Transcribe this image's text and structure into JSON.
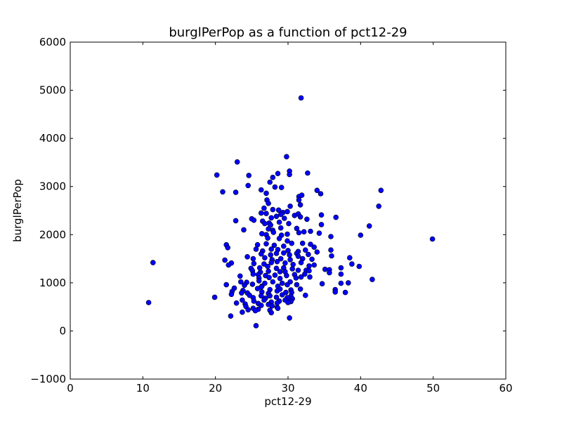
{
  "chart_data": {
    "type": "scatter",
    "title": "burglPerPop as a function of pct12-29",
    "xlabel": "pct12-29",
    "ylabel": "burglPerPop",
    "xlim": [
      0,
      60
    ],
    "ylim": [
      -1000,
      6000
    ],
    "xticks": [
      0,
      10,
      20,
      30,
      40,
      50,
      60
    ],
    "yticks": [
      -1000,
      0,
      1000,
      2000,
      3000,
      4000,
      5000,
      6000
    ],
    "xtick_labels": [
      "0",
      "10",
      "20",
      "30",
      "40",
      "50",
      "60"
    ],
    "ytick_labels": [
      "−1000",
      "0",
      "1000",
      "2000",
      "3000",
      "4000",
      "5000",
      "6000"
    ],
    "grid": false,
    "legend": "none",
    "marker_color": "#0000ff",
    "marker_edge_color": "#000000",
    "points": [
      [
        31.8,
        4840
      ],
      [
        29.8,
        3620
      ],
      [
        23.0,
        3510
      ],
      [
        32.7,
        3280
      ],
      [
        30.2,
        3320
      ],
      [
        20.2,
        3240
      ],
      [
        24.6,
        3230
      ],
      [
        30.2,
        3250
      ],
      [
        28.6,
        3270
      ],
      [
        27.9,
        3190
      ],
      [
        24.5,
        3020
      ],
      [
        27.5,
        3090
      ],
      [
        28.2,
        2990
      ],
      [
        29.1,
        2980
      ],
      [
        21.0,
        2890
      ],
      [
        22.8,
        2880
      ],
      [
        26.3,
        2930
      ],
      [
        27.0,
        2860
      ],
      [
        34.5,
        2850
      ],
      [
        34.0,
        2920
      ],
      [
        42.8,
        2920
      ],
      [
        31.5,
        2790
      ],
      [
        31.9,
        2820
      ],
      [
        27.1,
        2720
      ],
      [
        31.5,
        2720
      ],
      [
        31.7,
        2620
      ],
      [
        27.3,
        2650
      ],
      [
        30.3,
        2590
      ],
      [
        42.5,
        2590
      ],
      [
        26.7,
        2550
      ],
      [
        27.9,
        2520
      ],
      [
        28.7,
        2510
      ],
      [
        29.3,
        2460
      ],
      [
        29.9,
        2480
      ],
      [
        26.3,
        2450
      ],
      [
        27.0,
        2440
      ],
      [
        29.0,
        2420
      ],
      [
        30.9,
        2400
      ],
      [
        31.4,
        2430
      ],
      [
        34.6,
        2410
      ],
      [
        25.0,
        2330
      ],
      [
        25.3,
        2300
      ],
      [
        27.7,
        2350
      ],
      [
        28.4,
        2380
      ],
      [
        29.5,
        2340
      ],
      [
        31.7,
        2370
      ],
      [
        32.6,
        2320
      ],
      [
        36.6,
        2360
      ],
      [
        22.8,
        2290
      ],
      [
        26.5,
        2280
      ],
      [
        27.4,
        2240
      ],
      [
        26.8,
        2230
      ],
      [
        27.6,
        2200
      ],
      [
        28.8,
        2260
      ],
      [
        30.1,
        2230
      ],
      [
        34.6,
        2210
      ],
      [
        41.2,
        2180
      ],
      [
        23.9,
        2100
      ],
      [
        27.3,
        2120
      ],
      [
        27.9,
        2090
      ],
      [
        29.0,
        2140
      ],
      [
        31.2,
        2130
      ],
      [
        26.4,
        2020
      ],
      [
        27.0,
        2000
      ],
      [
        28.0,
        2050
      ],
      [
        29.1,
        1990
      ],
      [
        29.9,
        2010
      ],
      [
        31.5,
        2040
      ],
      [
        32.2,
        2060
      ],
      [
        33.1,
        2070
      ],
      [
        34.3,
        2030
      ],
      [
        35.9,
        1960
      ],
      [
        40.0,
        1990
      ],
      [
        49.9,
        1910
      ],
      [
        27.2,
        1930
      ],
      [
        28.8,
        1920
      ],
      [
        29.9,
        1870
      ],
      [
        21.5,
        1790
      ],
      [
        25.8,
        1790
      ],
      [
        27.0,
        1810
      ],
      [
        28.1,
        1780
      ],
      [
        29.4,
        1760
      ],
      [
        30.5,
        1820
      ],
      [
        32.0,
        1820
      ],
      [
        33.1,
        1800
      ],
      [
        21.7,
        1730
      ],
      [
        25.6,
        1700
      ],
      [
        26.5,
        1660
      ],
      [
        27.7,
        1700
      ],
      [
        28.6,
        1690
      ],
      [
        30.0,
        1670
      ],
      [
        31.4,
        1650
      ],
      [
        32.4,
        1680
      ],
      [
        33.6,
        1740
      ],
      [
        35.9,
        1680
      ],
      [
        26.3,
        1600
      ],
      [
        27.6,
        1580
      ],
      [
        28.4,
        1610
      ],
      [
        29.4,
        1620
      ],
      [
        30.2,
        1580
      ],
      [
        31.2,
        1610
      ],
      [
        32.8,
        1590
      ],
      [
        34.0,
        1640
      ],
      [
        36.0,
        1560
      ],
      [
        24.4,
        1540
      ],
      [
        25.2,
        1500
      ],
      [
        26.8,
        1520
      ],
      [
        27.8,
        1480
      ],
      [
        29.0,
        1500
      ],
      [
        30.3,
        1480
      ],
      [
        31.4,
        1550
      ],
      [
        32.0,
        1500
      ],
      [
        33.3,
        1490
      ],
      [
        38.5,
        1520
      ],
      [
        11.4,
        1420
      ],
      [
        21.3,
        1470
      ],
      [
        22.2,
        1410
      ],
      [
        21.8,
        1370
      ],
      [
        25.3,
        1400
      ],
      [
        26.7,
        1390
      ],
      [
        27.7,
        1420
      ],
      [
        28.5,
        1440
      ],
      [
        29.6,
        1410
      ],
      [
        30.7,
        1380
      ],
      [
        31.8,
        1420
      ],
      [
        32.9,
        1350
      ],
      [
        33.6,
        1370
      ],
      [
        37.3,
        1310
      ],
      [
        38.8,
        1390
      ],
      [
        39.8,
        1340
      ],
      [
        24.9,
        1300
      ],
      [
        26.1,
        1310
      ],
      [
        27.2,
        1340
      ],
      [
        28.4,
        1300
      ],
      [
        29.4,
        1310
      ],
      [
        30.6,
        1290
      ],
      [
        32.5,
        1260
      ],
      [
        35.1,
        1280
      ],
      [
        35.7,
        1270
      ],
      [
        25.1,
        1250
      ],
      [
        26.2,
        1220
      ],
      [
        27.3,
        1240
      ],
      [
        28.9,
        1230
      ],
      [
        29.6,
        1230
      ],
      [
        31.4,
        1260
      ],
      [
        32.9,
        1250
      ],
      [
        35.7,
        1210
      ],
      [
        25.2,
        1180
      ],
      [
        25.9,
        1170
      ],
      [
        26.9,
        1150
      ],
      [
        28.2,
        1160
      ],
      [
        29.8,
        1150
      ],
      [
        30.9,
        1170
      ],
      [
        32.3,
        1180
      ],
      [
        33.0,
        1120
      ],
      [
        37.3,
        1180
      ],
      [
        23.4,
        1140
      ],
      [
        26.0,
        1100
      ],
      [
        27.4,
        1110
      ],
      [
        28.9,
        1090
      ],
      [
        31.1,
        1100
      ],
      [
        31.8,
        1120
      ],
      [
        41.6,
        1070
      ],
      [
        23.5,
        1020
      ],
      [
        24.3,
        1010
      ],
      [
        26.0,
        1040
      ],
      [
        26.8,
        990
      ],
      [
        27.9,
        1020
      ],
      [
        29.2,
        990
      ],
      [
        30.3,
        1020
      ],
      [
        31.2,
        960
      ],
      [
        34.7,
        980
      ],
      [
        37.3,
        990
      ],
      [
        38.3,
        1000
      ],
      [
        21.5,
        960
      ],
      [
        24.0,
        950
      ],
      [
        25.1,
        970
      ],
      [
        26.4,
        930
      ],
      [
        28.6,
        930
      ],
      [
        29.9,
        960
      ],
      [
        26.3,
        910
      ],
      [
        22.6,
        890
      ],
      [
        23.8,
        840
      ],
      [
        25.8,
        880
      ],
      [
        27.5,
        860
      ],
      [
        28.9,
        870
      ],
      [
        30.4,
        850
      ],
      [
        31.7,
        870
      ],
      [
        36.5,
        860
      ],
      [
        37.9,
        800
      ],
      [
        22.3,
        820
      ],
      [
        23.6,
        790
      ],
      [
        24.4,
        790
      ],
      [
        26.4,
        810
      ],
      [
        27.3,
        780
      ],
      [
        28.5,
        830
      ],
      [
        29.7,
        800
      ],
      [
        30.5,
        800
      ],
      [
        36.5,
        810
      ],
      [
        22.2,
        760
      ],
      [
        24.7,
        740
      ],
      [
        26.3,
        730
      ],
      [
        27.5,
        730
      ],
      [
        29.2,
        750
      ],
      [
        30.4,
        720
      ],
      [
        32.4,
        740
      ],
      [
        19.9,
        700
      ],
      [
        25.2,
        690
      ],
      [
        26.9,
        680
      ],
      [
        28.4,
        700
      ],
      [
        29.9,
        690
      ],
      [
        30.6,
        670
      ],
      [
        23.7,
        640
      ],
      [
        25.3,
        620
      ],
      [
        26.7,
        640
      ],
      [
        27.7,
        600
      ],
      [
        28.8,
        620
      ],
      [
        29.6,
        640
      ],
      [
        30.4,
        610
      ],
      [
        10.8,
        590
      ],
      [
        22.9,
        580
      ],
      [
        24.1,
        560
      ],
      [
        25.9,
        570
      ],
      [
        27.3,
        550
      ],
      [
        28.5,
        580
      ],
      [
        30.0,
        590
      ],
      [
        26.3,
        530
      ],
      [
        24.2,
        510
      ],
      [
        27.8,
        520
      ],
      [
        25.2,
        470
      ],
      [
        28.5,
        490
      ],
      [
        24.5,
        440
      ],
      [
        25.9,
        450
      ],
      [
        27.5,
        430
      ],
      [
        28.6,
        470
      ],
      [
        23.7,
        390
      ],
      [
        27.7,
        380
      ],
      [
        25.5,
        420
      ],
      [
        22.1,
        310
      ],
      [
        30.2,
        270
      ],
      [
        25.6,
        110
      ]
    ]
  }
}
